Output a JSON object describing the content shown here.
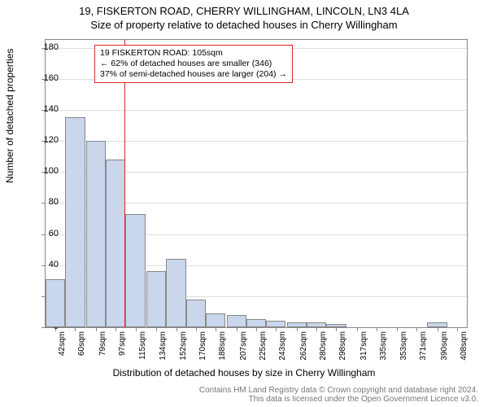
{
  "title_main": "19, FISKERTON ROAD, CHERRY WILLINGHAM, LINCOLN, LN3 4LA",
  "title_sub": "Size of property relative to detached houses in Cherry Willingham",
  "ylabel": "Number of detached properties",
  "xlabel": "Distribution of detached houses by size in Cherry Willingham",
  "footer": "Contains HM Land Registry data © Crown copyright and database right 2024.\nThis data is licensed under the Open Government Licence v3.0.",
  "callout": {
    "line1": "19 FISKERTON ROAD: 105sqm",
    "line2": "← 62% of detached houses are smaller (346)",
    "line3": "37% of semi-detached houses are larger (204) →"
  },
  "chart": {
    "type": "histogram",
    "background_color": "#ffffff",
    "grid_color": "#dddddd",
    "bar_fill": "#c9d6ec",
    "bar_border": "#888888",
    "refline_color": "#d62728",
    "refline_x": 105,
    "ylim": [
      0,
      185
    ],
    "yticks": [
      0,
      20,
      40,
      60,
      80,
      100,
      120,
      140,
      160,
      180
    ],
    "xlim": [
      33,
      417
    ],
    "xticks": [
      "42sqm",
      "60sqm",
      "79sqm",
      "97sqm",
      "115sqm",
      "134sqm",
      "152sqm",
      "170sqm",
      "188sqm",
      "207sqm",
      "225sqm",
      "243sqm",
      "262sqm",
      "280sqm",
      "298sqm",
      "317sqm",
      "335sqm",
      "353sqm",
      "371sqm",
      "390sqm",
      "408sqm"
    ],
    "xtick_values": [
      42,
      60,
      79,
      97,
      115,
      134,
      152,
      170,
      188,
      207,
      225,
      243,
      262,
      280,
      298,
      317,
      335,
      353,
      371,
      390,
      408
    ],
    "bin_width": 18,
    "bars": [
      {
        "x": 42,
        "h": 31
      },
      {
        "x": 60,
        "h": 135
      },
      {
        "x": 79,
        "h": 120
      },
      {
        "x": 97,
        "h": 108
      },
      {
        "x": 115,
        "h": 73
      },
      {
        "x": 134,
        "h": 36
      },
      {
        "x": 152,
        "h": 44
      },
      {
        "x": 170,
        "h": 18
      },
      {
        "x": 188,
        "h": 9
      },
      {
        "x": 207,
        "h": 8
      },
      {
        "x": 225,
        "h": 5
      },
      {
        "x": 243,
        "h": 4
      },
      {
        "x": 262,
        "h": 3
      },
      {
        "x": 280,
        "h": 3
      },
      {
        "x": 298,
        "h": 2
      },
      {
        "x": 317,
        "h": 0
      },
      {
        "x": 335,
        "h": 0
      },
      {
        "x": 353,
        "h": 0
      },
      {
        "x": 371,
        "h": 0
      },
      {
        "x": 390,
        "h": 3
      },
      {
        "x": 408,
        "h": 0
      }
    ]
  }
}
